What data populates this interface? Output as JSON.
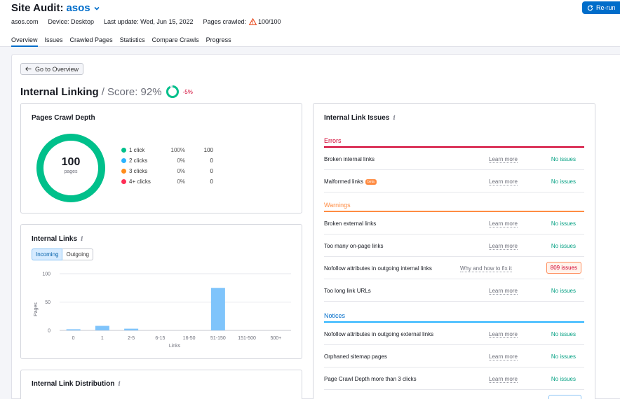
{
  "header": {
    "title": "Site Audit:",
    "project": "asos",
    "domain": "asos.com",
    "device": "Device: Desktop",
    "last_update": "Last update: Wed, Jun 15, 2022",
    "pages_crawled_label": "Pages crawled:",
    "pages_crawled_value": "100/100",
    "rerun_label": "Re-run"
  },
  "nav": {
    "tabs": [
      "Overview",
      "Issues",
      "Crawled Pages",
      "Statistics",
      "Compare Crawls",
      "Progress"
    ],
    "active": 0
  },
  "back_button": "Go to Overview",
  "page_title": {
    "title": "Internal Linking",
    "score": "/ Score: 92%",
    "score_value": 92,
    "delta": "-5%"
  },
  "crawl_depth": {
    "title": "Pages Crawl Depth",
    "center_value": "100",
    "center_label": "pages",
    "legend": [
      {
        "label": "1 click",
        "pct": "100%",
        "count": "100",
        "color": "#00c08b"
      },
      {
        "label": "2 clicks",
        "pct": "0%",
        "count": "0",
        "color": "#2bb3ff"
      },
      {
        "label": "3 clicks",
        "pct": "0%",
        "count": "0",
        "color": "#ff8c1a"
      },
      {
        "label": "4+ clicks",
        "pct": "0%",
        "count": "0",
        "color": "#ff2d55"
      }
    ]
  },
  "internal_links": {
    "title": "Internal Links",
    "incoming": "Incoming",
    "outgoing": "Outgoing",
    "ylabel": "Pages",
    "xlabel": "Links"
  },
  "chart_data": {
    "type": "bar",
    "categories": [
      "0",
      "1",
      "2-5",
      "6-15",
      "16-50",
      "51-150",
      "151-500",
      "500+"
    ],
    "values": [
      2,
      8,
      3,
      0,
      0,
      75,
      0,
      0
    ],
    "xlabel": "Links",
    "ylabel": "Pages",
    "ylim": [
      0,
      100
    ],
    "yticks": [
      "0",
      "50",
      "100"
    ],
    "color": "#7fc4fb"
  },
  "distribution": {
    "title": "Internal Link Distribution"
  },
  "issues": {
    "title": "Internal Link Issues",
    "sections": [
      {
        "name": "Errors",
        "color": "#d1002f",
        "items": [
          {
            "name": "Broken internal links",
            "link": "Learn more",
            "status": "No issues"
          },
          {
            "name": "Malformed links",
            "badge": "beta",
            "link": "Learn more",
            "status": "No issues"
          }
        ]
      },
      {
        "name": "Warnings",
        "color": "#ff8c43",
        "items": [
          {
            "name": "Broken external links",
            "link": "Learn more",
            "status": "No issues"
          },
          {
            "name": "Too many on-page links",
            "link": "Learn more",
            "status": "No issues"
          },
          {
            "name": "Nofollow attributes in outgoing internal links",
            "link": "Why and how to fix it",
            "status": "809 issues"
          },
          {
            "name": "Too long link URLs",
            "link": "Learn more",
            "status": "No issues"
          }
        ]
      },
      {
        "name": "Notices",
        "color": "#2bb3ff",
        "items": [
          {
            "name": "Nofollow attributes in outgoing external links",
            "link": "Learn more",
            "status": "No issues"
          },
          {
            "name": "Orphaned sitemap pages",
            "link": "Learn more",
            "status": "No issues"
          },
          {
            "name": "Page Crawl Depth more than 3 clicks",
            "link": "Learn more",
            "status": "No issues"
          }
        ]
      }
    ]
  }
}
